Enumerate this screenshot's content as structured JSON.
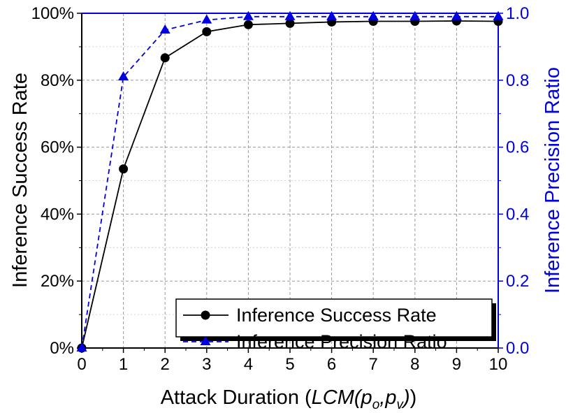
{
  "chart_data": {
    "type": "line",
    "x": [
      0,
      1,
      2,
      3,
      4,
      5,
      6,
      7,
      8,
      9,
      10
    ],
    "xlim": [
      0,
      10
    ],
    "xticks": [
      "0",
      "1",
      "2",
      "3",
      "4",
      "5",
      "6",
      "7",
      "8",
      "9",
      "10"
    ],
    "xlabel": {
      "prefix": "Attack Duration (",
      "italic_main": "LCM(p",
      "sub1": "o",
      "comma": ",p",
      "sub2": "v",
      "suffix_italic": ")",
      "suffix": ")"
    },
    "y_left": {
      "label": "Inference Success Rate",
      "lim": [
        0,
        100
      ],
      "ticks": [
        "0%",
        "20%",
        "40%",
        "60%",
        "80%",
        "100%"
      ],
      "color": "#000000"
    },
    "y_right": {
      "label": "Inference Precision Ratio",
      "lim": [
        0,
        1
      ],
      "ticks": [
        "0.0",
        "0.2",
        "0.4",
        "0.6",
        "0.8",
        "1.0"
      ],
      "color": "#0000e0"
    },
    "grid": true,
    "legend_position": "bottom-right",
    "series": [
      {
        "name": "Inference Success Rate",
        "axis": "left",
        "color": "#000000",
        "line_style": "solid",
        "marker": "circle",
        "values": [
          0,
          53.5,
          86.7,
          94.5,
          96.6,
          97.0,
          97.4,
          97.6,
          97.6,
          97.7,
          97.6
        ]
      },
      {
        "name": "Inference Precision Ratio",
        "axis": "right",
        "color": "#0000e0",
        "line_style": "dashed",
        "marker": "triangle",
        "values": [
          0,
          0.81,
          0.95,
          0.98,
          0.99,
          0.99,
          0.99,
          0.99,
          0.99,
          0.99,
          0.99
        ]
      }
    ]
  }
}
